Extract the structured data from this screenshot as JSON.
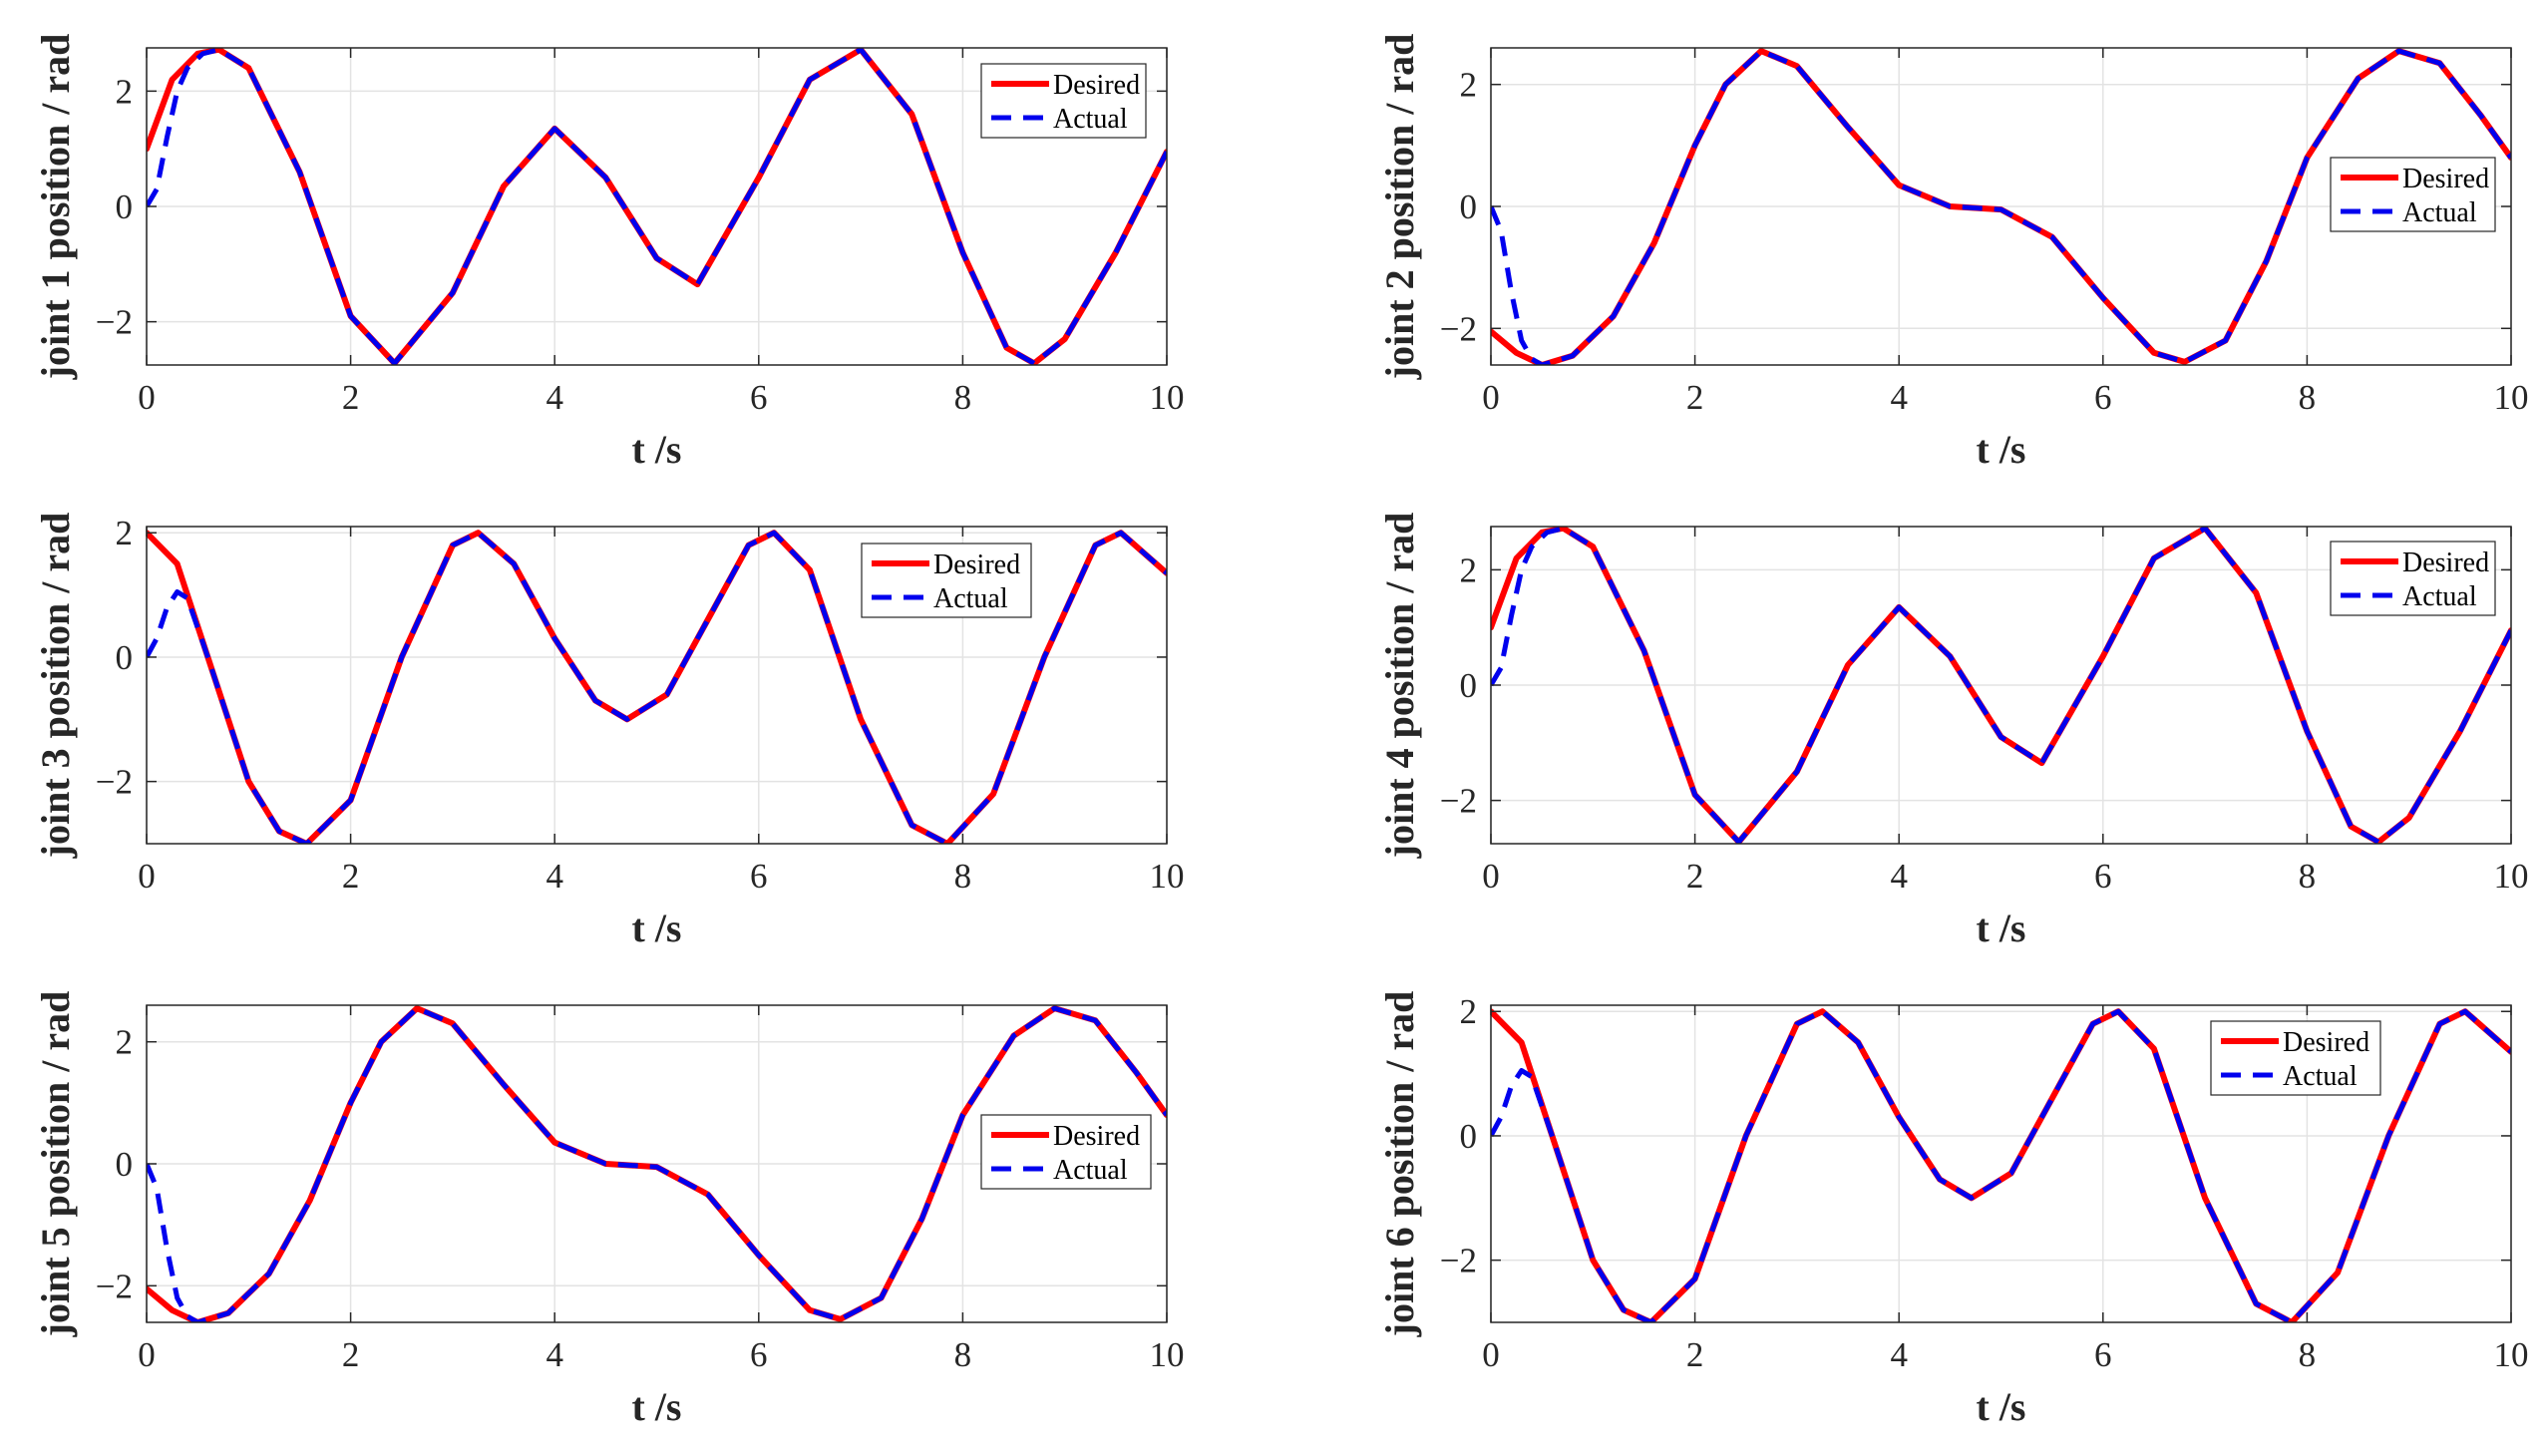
{
  "figure": {
    "colors": {
      "desired": "#ff0000",
      "actual": "#0000ee",
      "axis": "#262626",
      "grid": "#e3e3e3"
    }
  },
  "chart_data": [
    {
      "type": "line",
      "title": "",
      "xlabel": "t /s",
      "ylabel": "joint 1 position / rad",
      "xlim": [
        0,
        10
      ],
      "ylim": [
        -2.75,
        2.75
      ],
      "xticks": [
        0,
        2,
        4,
        6,
        8,
        10
      ],
      "yticks": [
        -2,
        0,
        2
      ],
      "grid": true,
      "legend": {
        "position": "top-right",
        "entries": [
          "Desired",
          "Actual"
        ]
      },
      "series": [
        {
          "name": "Desired",
          "style": "solid",
          "color": "#ff0000",
          "x": [
            0,
            0.25,
            0.5,
            0.71,
            1.0,
            1.5,
            2.0,
            2.43,
            3.0,
            3.5,
            4.0,
            4.5,
            5.0,
            5.4,
            6.0,
            6.5,
            7.0,
            7.5,
            8.0,
            8.43,
            8.7,
            9.0,
            9.5,
            10.0
          ],
          "y": [
            1.0,
            2.2,
            2.65,
            2.72,
            2.4,
            0.6,
            -1.9,
            -2.72,
            -1.5,
            0.35,
            1.35,
            0.5,
            -0.9,
            -1.35,
            0.5,
            2.2,
            2.72,
            1.6,
            -0.8,
            -2.45,
            -2.72,
            -2.3,
            -0.8,
            0.95
          ]
        },
        {
          "name": "Actual",
          "style": "dashed",
          "color": "#0000ee",
          "x": [
            0,
            0.1,
            0.2,
            0.3,
            0.4,
            0.55,
            0.71,
            1.0,
            1.5,
            2.0,
            2.43,
            3.0,
            3.5,
            4.0,
            4.5,
            5.0,
            5.4,
            6.0,
            6.5,
            7.0,
            7.5,
            8.0,
            8.43,
            8.7,
            9.0,
            9.5,
            10.0
          ],
          "y": [
            0.0,
            0.3,
            1.2,
            2.0,
            2.4,
            2.65,
            2.72,
            2.4,
            0.6,
            -1.9,
            -2.72,
            -1.5,
            0.35,
            1.35,
            0.5,
            -0.9,
            -1.35,
            0.5,
            2.2,
            2.72,
            1.6,
            -0.8,
            -2.45,
            -2.72,
            -2.3,
            -0.8,
            0.95
          ]
        }
      ]
    },
    {
      "type": "line",
      "title": "",
      "xlabel": "t /s",
      "ylabel": "joint 2 position / rad",
      "xlim": [
        0,
        10
      ],
      "ylim": [
        -2.6,
        2.6
      ],
      "xticks": [
        0,
        2,
        4,
        6,
        8,
        10
      ],
      "yticks": [
        -2,
        0,
        2
      ],
      "grid": true,
      "legend": {
        "position": "top-right",
        "entries": [
          "Desired",
          "Actual"
        ]
      },
      "series": [
        {
          "name": "Desired",
          "style": "solid",
          "color": "#ff0000",
          "x": [
            0,
            0.25,
            0.5,
            0.8,
            1.2,
            1.6,
            2.0,
            2.3,
            2.65,
            3.0,
            3.5,
            4.0,
            4.5,
            5.0,
            5.5,
            6.0,
            6.5,
            6.8,
            7.2,
            7.6,
            8.0,
            8.5,
            8.9,
            9.3,
            9.7,
            10.0
          ],
          "y": [
            -2.05,
            -2.4,
            -2.6,
            -2.45,
            -1.8,
            -0.6,
            1.0,
            2.0,
            2.55,
            2.3,
            1.3,
            0.35,
            0.0,
            -0.05,
            -0.5,
            -1.5,
            -2.4,
            -2.55,
            -2.2,
            -0.9,
            0.8,
            2.1,
            2.55,
            2.35,
            1.5,
            0.8
          ]
        },
        {
          "name": "Actual",
          "style": "dashed",
          "color": "#0000ee",
          "x": [
            0,
            0.1,
            0.2,
            0.3,
            0.4,
            0.5,
            0.8,
            1.2,
            1.6,
            2.0,
            2.3,
            2.65,
            3.0,
            3.5,
            4.0,
            4.5,
            5.0,
            5.5,
            6.0,
            6.5,
            6.8,
            7.2,
            7.6,
            8.0,
            8.5,
            8.9,
            9.3,
            9.7,
            10.0
          ],
          "y": [
            0.0,
            -0.4,
            -1.4,
            -2.2,
            -2.5,
            -2.6,
            -2.45,
            -1.8,
            -0.6,
            1.0,
            2.0,
            2.55,
            2.3,
            1.3,
            0.35,
            0.0,
            -0.05,
            -0.5,
            -1.5,
            -2.4,
            -2.55,
            -2.2,
            -0.9,
            0.8,
            2.1,
            2.55,
            2.35,
            1.5,
            0.8
          ]
        }
      ]
    },
    {
      "type": "line",
      "title": "",
      "xlabel": "t /s",
      "ylabel": "joint 3 position / rad",
      "xlim": [
        0,
        10
      ],
      "ylim": [
        -3,
        2.1
      ],
      "xticks": [
        0,
        2,
        4,
        6,
        8,
        10
      ],
      "yticks": [
        -2,
        0,
        2
      ],
      "grid": true,
      "legend": {
        "position": "top-right",
        "entries": [
          "Desired",
          "Actual"
        ]
      },
      "series": [
        {
          "name": "Desired",
          "style": "solid",
          "color": "#ff0000",
          "x": [
            0,
            0.3,
            0.6,
            1.0,
            1.3,
            1.57,
            2.0,
            2.5,
            3.0,
            3.25,
            3.6,
            4.0,
            4.4,
            4.71,
            5.1,
            5.5,
            5.9,
            6.15,
            6.5,
            7.0,
            7.5,
            7.85,
            8.3,
            8.8,
            9.3,
            9.55,
            10.0
          ],
          "y": [
            2.0,
            1.5,
            0.0,
            -2.0,
            -2.8,
            -3.0,
            -2.3,
            0.0,
            1.8,
            2.0,
            1.5,
            0.3,
            -0.7,
            -1.0,
            -0.6,
            0.6,
            1.8,
            2.0,
            1.4,
            -1.0,
            -2.7,
            -3.0,
            -2.2,
            0.0,
            1.8,
            2.0,
            1.35
          ]
        },
        {
          "name": "Actual",
          "style": "dashed",
          "color": "#0000ee",
          "x": [
            0,
            0.1,
            0.2,
            0.3,
            0.4,
            0.6,
            1.0,
            1.3,
            1.57,
            2.0,
            2.5,
            3.0,
            3.25,
            3.6,
            4.0,
            4.4,
            4.71,
            5.1,
            5.5,
            5.9,
            6.15,
            6.5,
            7.0,
            7.5,
            7.85,
            8.3,
            8.8,
            9.3,
            9.55,
            10.0
          ],
          "y": [
            0.0,
            0.3,
            0.8,
            1.05,
            0.95,
            0.0,
            -2.0,
            -2.8,
            -3.0,
            -2.3,
            0.0,
            1.8,
            2.0,
            1.5,
            0.3,
            -0.7,
            -1.0,
            -0.6,
            0.6,
            1.8,
            2.0,
            1.4,
            -1.0,
            -2.7,
            -3.0,
            -2.2,
            0.0,
            1.8,
            2.0,
            1.35
          ]
        }
      ]
    },
    {
      "type": "line",
      "title": "",
      "xlabel": "t /s",
      "ylabel": "joint 4 position / rad",
      "xlim": [
        0,
        10
      ],
      "ylim": [
        -2.75,
        2.75
      ],
      "xticks": [
        0,
        2,
        4,
        6,
        8,
        10
      ],
      "yticks": [
        -2,
        0,
        2
      ],
      "grid": true,
      "legend": {
        "position": "top-right",
        "entries": [
          "Desired",
          "Actual"
        ]
      },
      "series": [
        {
          "name": "Desired",
          "style": "solid",
          "color": "#ff0000",
          "x": [
            0,
            0.25,
            0.5,
            0.71,
            1.0,
            1.5,
            2.0,
            2.43,
            3.0,
            3.5,
            4.0,
            4.5,
            5.0,
            5.4,
            6.0,
            6.5,
            7.0,
            7.5,
            8.0,
            8.43,
            8.7,
            9.0,
            9.5,
            10.0
          ],
          "y": [
            1.0,
            2.2,
            2.65,
            2.72,
            2.4,
            0.6,
            -1.9,
            -2.72,
            -1.5,
            0.35,
            1.35,
            0.5,
            -0.9,
            -1.35,
            0.5,
            2.2,
            2.72,
            1.6,
            -0.8,
            -2.45,
            -2.72,
            -2.3,
            -0.8,
            0.95
          ]
        },
        {
          "name": "Actual",
          "style": "dashed",
          "color": "#0000ee",
          "x": [
            0,
            0.1,
            0.2,
            0.3,
            0.4,
            0.55,
            0.71,
            1.0,
            1.5,
            2.0,
            2.43,
            3.0,
            3.5,
            4.0,
            4.5,
            5.0,
            5.4,
            6.0,
            6.5,
            7.0,
            7.5,
            8.0,
            8.43,
            8.7,
            9.0,
            9.5,
            10.0
          ],
          "y": [
            0.0,
            0.3,
            1.2,
            2.0,
            2.4,
            2.65,
            2.72,
            2.4,
            0.6,
            -1.9,
            -2.72,
            -1.5,
            0.35,
            1.35,
            0.5,
            -0.9,
            -1.35,
            0.5,
            2.2,
            2.72,
            1.6,
            -0.8,
            -2.45,
            -2.72,
            -2.3,
            -0.8,
            0.95
          ]
        }
      ]
    },
    {
      "type": "line",
      "title": "",
      "xlabel": "t /s",
      "ylabel": "joint 5 position / rad",
      "xlim": [
        0,
        10
      ],
      "ylim": [
        -2.6,
        2.6
      ],
      "xticks": [
        0,
        2,
        4,
        6,
        8,
        10
      ],
      "yticks": [
        -2,
        0,
        2
      ],
      "grid": true,
      "legend": {
        "position": "top-right",
        "entries": [
          "Desired",
          "Actual"
        ]
      },
      "series": [
        {
          "name": "Desired",
          "style": "solid",
          "color": "#ff0000",
          "x": [
            0,
            0.25,
            0.5,
            0.8,
            1.2,
            1.6,
            2.0,
            2.3,
            2.65,
            3.0,
            3.5,
            4.0,
            4.5,
            5.0,
            5.5,
            6.0,
            6.5,
            6.8,
            7.2,
            7.6,
            8.0,
            8.5,
            8.9,
            9.3,
            9.7,
            10.0
          ],
          "y": [
            -2.05,
            -2.4,
            -2.6,
            -2.45,
            -1.8,
            -0.6,
            1.0,
            2.0,
            2.55,
            2.3,
            1.3,
            0.35,
            0.0,
            -0.05,
            -0.5,
            -1.5,
            -2.4,
            -2.55,
            -2.2,
            -0.9,
            0.8,
            2.1,
            2.55,
            2.35,
            1.5,
            0.8
          ]
        },
        {
          "name": "Actual",
          "style": "dashed",
          "color": "#0000ee",
          "x": [
            0,
            0.1,
            0.2,
            0.3,
            0.4,
            0.5,
            0.8,
            1.2,
            1.6,
            2.0,
            2.3,
            2.65,
            3.0,
            3.5,
            4.0,
            4.5,
            5.0,
            5.5,
            6.0,
            6.5,
            6.8,
            7.2,
            7.6,
            8.0,
            8.5,
            8.9,
            9.3,
            9.7,
            10.0
          ],
          "y": [
            0.0,
            -0.4,
            -1.4,
            -2.2,
            -2.5,
            -2.6,
            -2.45,
            -1.8,
            -0.6,
            1.0,
            2.0,
            2.55,
            2.3,
            1.3,
            0.35,
            0.0,
            -0.05,
            -0.5,
            -1.5,
            -2.4,
            -2.55,
            -2.2,
            -0.9,
            0.8,
            2.1,
            2.55,
            2.35,
            1.5,
            0.8
          ]
        }
      ]
    },
    {
      "type": "line",
      "title": "",
      "xlabel": "t /s",
      "ylabel": "joint 6 position / rad",
      "xlim": [
        0,
        10
      ],
      "ylim": [
        -3,
        2.1
      ],
      "xticks": [
        0,
        2,
        4,
        6,
        8,
        10
      ],
      "yticks": [
        -2,
        0,
        2
      ],
      "grid": true,
      "legend": {
        "position": "top-right",
        "entries": [
          "Desired",
          "Actual"
        ]
      },
      "series": [
        {
          "name": "Desired",
          "style": "solid",
          "color": "#ff0000",
          "x": [
            0,
            0.3,
            0.6,
            1.0,
            1.3,
            1.57,
            2.0,
            2.5,
            3.0,
            3.25,
            3.6,
            4.0,
            4.4,
            4.71,
            5.1,
            5.5,
            5.9,
            6.15,
            6.5,
            7.0,
            7.5,
            7.85,
            8.3,
            8.8,
            9.3,
            9.55,
            10.0
          ],
          "y": [
            2.0,
            1.5,
            0.0,
            -2.0,
            -2.8,
            -3.0,
            -2.3,
            0.0,
            1.8,
            2.0,
            1.5,
            0.3,
            -0.7,
            -1.0,
            -0.6,
            0.6,
            1.8,
            2.0,
            1.4,
            -1.0,
            -2.7,
            -3.0,
            -2.2,
            0.0,
            1.8,
            2.0,
            1.35
          ]
        },
        {
          "name": "Actual",
          "style": "dashed",
          "color": "#0000ee",
          "x": [
            0,
            0.1,
            0.2,
            0.3,
            0.4,
            0.6,
            1.0,
            1.3,
            1.57,
            2.0,
            2.5,
            3.0,
            3.25,
            3.6,
            4.0,
            4.4,
            4.71,
            5.1,
            5.5,
            5.9,
            6.15,
            6.5,
            7.0,
            7.5,
            7.85,
            8.3,
            8.8,
            9.3,
            9.55,
            10.0
          ],
          "y": [
            0.0,
            0.3,
            0.8,
            1.05,
            0.95,
            0.0,
            -2.0,
            -2.8,
            -3.0,
            -2.3,
            0.0,
            1.8,
            2.0,
            1.5,
            0.3,
            -0.7,
            -1.0,
            -0.6,
            0.6,
            1.8,
            2.0,
            1.4,
            -1.0,
            -2.7,
            -3.0,
            -2.2,
            0.0,
            1.8,
            2.0,
            1.35
          ]
        }
      ]
    }
  ]
}
